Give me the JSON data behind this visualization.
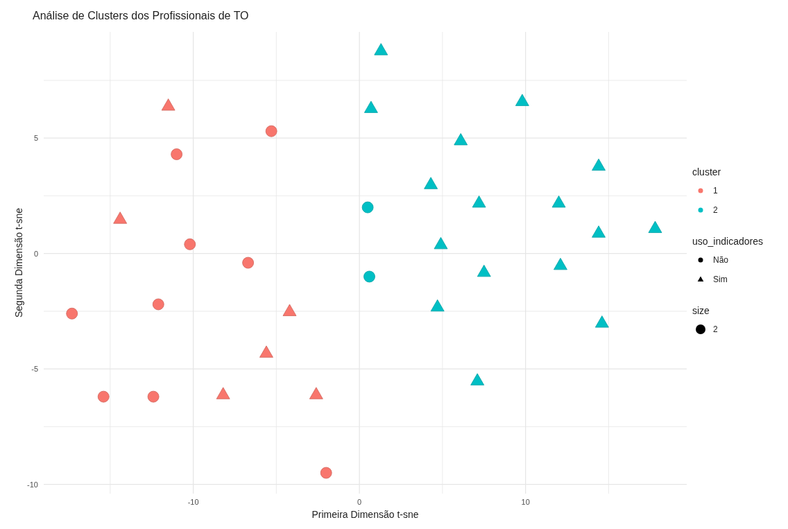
{
  "chart_data": {
    "type": "scatter",
    "title": "Análise de Clusters dos Profissionais de TO",
    "xlabel": "Primeira Dimensão t-sne",
    "ylabel": "Segunda Dimensão t-sne",
    "xlim": [
      -19,
      19.7
    ],
    "ylim": [
      -10.4,
      9.6
    ],
    "xticks": [
      {
        "value": -15,
        "label": null
      },
      -10,
      {
        "value": -5,
        "label": null
      },
      0,
      {
        "value": 5,
        "label": null
      },
      10,
      {
        "value": 15,
        "label": null
      }
    ],
    "yticks": [
      -10,
      {
        "value": -7.5,
        "label": null
      },
      -5,
      {
        "value": -2.5,
        "label": null
      },
      0,
      {
        "value": 2.5,
        "label": null
      },
      5,
      {
        "value": 7.5,
        "label": null
      }
    ],
    "grid": true,
    "legend": "right",
    "legend_title": "cluster",
    "annotations": [
      "uso_indicadores",
      "Não",
      "Sim",
      "size",
      "2"
    ],
    "series": [
      {
        "name": "1",
        "color": "#f8766d",
        "marker": "circle",
        "x": [
          -11.0,
          -5.3,
          -10.2,
          -6.7,
          -12.1,
          -17.3,
          -15.4,
          -12.4,
          -2.0
        ],
        "values": [
          4.3,
          5.3,
          0.4,
          -0.4,
          -2.2,
          -2.6,
          -6.2,
          -6.2,
          -9.5
        ]
      },
      {
        "color": "#f8766d",
        "marker": "triangle",
        "x": [
          -11.5,
          -14.4,
          -4.2,
          -5.6,
          -8.2,
          -2.6
        ],
        "values": [
          6.4,
          1.5,
          -2.5,
          -4.3,
          -6.1,
          -6.1
        ]
      },
      {
        "name": "2",
        "color": "#00bfc4",
        "marker": "circle",
        "x": [
          0.5,
          0.6
        ],
        "values": [
          2.0,
          -1.0
        ]
      },
      {
        "color": "#00bfc4",
        "marker": "triangle",
        "x": [
          1.3,
          0.7,
          9.8,
          6.1,
          14.4,
          4.3,
          7.2,
          12.0,
          17.8,
          14.4,
          4.9,
          7.5,
          12.1,
          4.7,
          14.6,
          7.1
        ],
        "values": [
          8.8,
          6.3,
          6.6,
          4.9,
          3.8,
          3.0,
          2.2,
          2.2,
          1.1,
          0.9,
          0.4,
          -0.8,
          -0.5,
          -2.3,
          -3.0,
          -5.5
        ]
      }
    ]
  }
}
